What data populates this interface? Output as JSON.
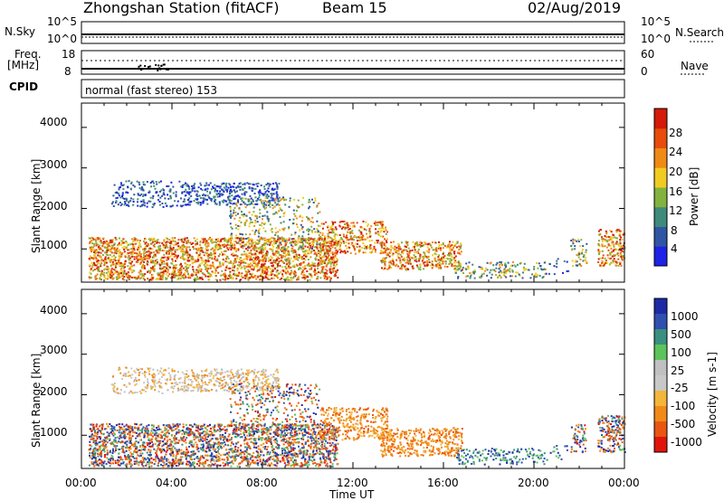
{
  "header": {
    "station": "Zhongshan Station (fitACF)",
    "beam": "Beam 15",
    "date": "02/Aug/2019"
  },
  "strip_labels": {
    "nsky": "N.Sky",
    "nsky_ticks": [
      "10^5",
      "10^0"
    ],
    "nsearch": "N.Search",
    "nsearch_ticks": [
      "10^5",
      "10^0"
    ],
    "freq": "Freq.",
    "freq_unit": "[MHz]",
    "freq_ticks": [
      "18",
      "8"
    ],
    "nave": "Nave",
    "nave_ticks": [
      "60",
      "0"
    ],
    "cpid": "CPID",
    "cpid_text": "normal (fast stereo) 153"
  },
  "colors": {
    "power_scale": [
      "#1e22e6",
      "#2f55a3",
      "#3f8a7a",
      "#83b23e",
      "#f0cc22",
      "#f08a16",
      "#e84b0c",
      "#d41a08"
    ],
    "velocity_scale": [
      "#e0150a",
      "#ea5512",
      "#f08a18",
      "#f3b53a",
      "#c8c8c8",
      "#c0c0c0",
      "#5cc45a",
      "#3a8f80",
      "#3050b0",
      "#1d2aa6"
    ]
  },
  "chart_data": [
    {
      "type": "heatmap",
      "name": "power",
      "ylabel": "Slant Range [km]",
      "xlabel": "Time UT",
      "x_ticks": [
        "00:00",
        "04:00",
        "08:00",
        "12:00",
        "16:00",
        "20:00",
        "00:00"
      ],
      "y_ticks": [
        1000,
        2000,
        3000,
        4000
      ],
      "xlim_hours": [
        0,
        24
      ],
      "ylim_km": [
        180,
        4600
      ],
      "colorbar": {
        "label": "Power [dB]",
        "ticks": [
          4,
          8,
          12,
          16,
          20,
          24,
          28
        ],
        "range": [
          0,
          30
        ]
      }
    },
    {
      "type": "heatmap",
      "name": "velocity",
      "ylabel": "Slant Range [km]",
      "xlabel": "Time UT",
      "x_ticks": [
        "00:00",
        "04:00",
        "08:00",
        "12:00",
        "16:00",
        "20:00",
        "00:00"
      ],
      "y_ticks": [
        1000,
        2000,
        3000,
        4000
      ],
      "xlim_hours": [
        0,
        24
      ],
      "ylim_km": [
        180,
        4600
      ],
      "colorbar": {
        "label": "Velocity [m s-1]",
        "ticks": [
          1000,
          500,
          100,
          25,
          -25,
          -100,
          -500,
          -1000
        ]
      }
    }
  ]
}
